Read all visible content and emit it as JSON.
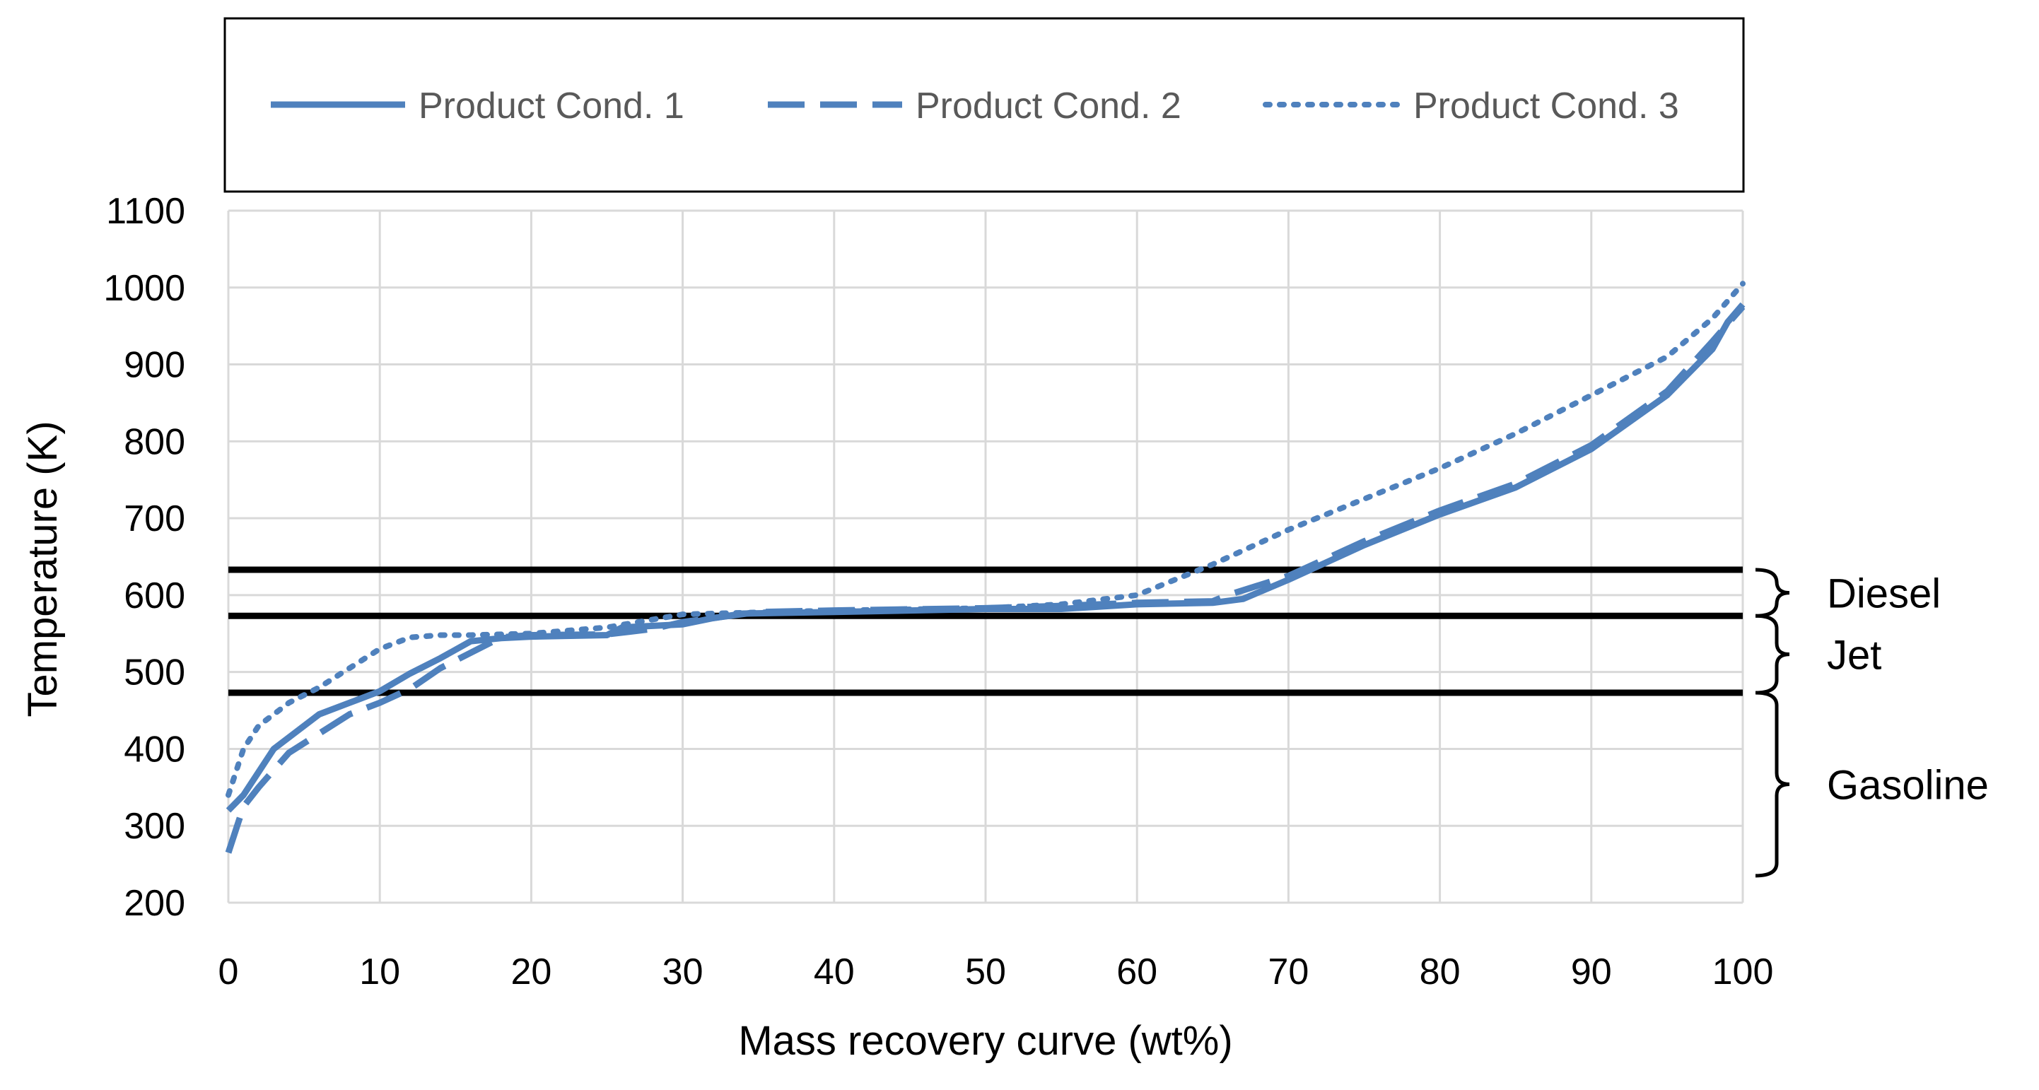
{
  "chart_data": {
    "type": "line",
    "xlabel": "Mass recovery curve (wt%)",
    "ylabel": "Temperature (K)",
    "xlim": [
      0,
      100
    ],
    "ylim": [
      200,
      1100
    ],
    "x_ticks": [
      "0",
      "10",
      "20",
      "30",
      "40",
      "50",
      "60",
      "70",
      "80",
      "90",
      "100"
    ],
    "y_ticks": [
      "200",
      "300",
      "400",
      "500",
      "600",
      "700",
      "800",
      "900",
      "1000",
      "1100"
    ],
    "grid": true,
    "legend_position": "top",
    "series": [
      {
        "name": "Product Cond. 1",
        "style": "solid",
        "color": "#4f81bd",
        "x": [
          0,
          1,
          2,
          3,
          5,
          6,
          8,
          10,
          12,
          14,
          16,
          18,
          20,
          25,
          26,
          30,
          32,
          34,
          40,
          50,
          55,
          60,
          65,
          67,
          70,
          75,
          80,
          85,
          90,
          95,
          98,
          99,
          100
        ],
        "y": [
          320,
          340,
          370,
          400,
          430,
          445,
          460,
          475,
          498,
          518,
          540,
          544,
          546,
          548,
          558,
          562,
          570,
          576,
          578,
          582,
          582,
          588,
          590,
          595,
          620,
          665,
          705,
          740,
          790,
          860,
          920,
          955,
          978
        ]
      },
      {
        "name": "Product Cond. 2",
        "style": "dashed",
        "color": "#4f81bd",
        "x": [
          0,
          1,
          2,
          4,
          6,
          8,
          10,
          12,
          14,
          16,
          18,
          20,
          25,
          28,
          30,
          35,
          40,
          50,
          55,
          60,
          65,
          66,
          70,
          75,
          80,
          85,
          90,
          95,
          98,
          100
        ],
        "y": [
          265,
          325,
          350,
          395,
          420,
          445,
          460,
          478,
          505,
          525,
          545,
          548,
          549,
          556,
          565,
          578,
          580,
          583,
          586,
          590,
          592,
          600,
          625,
          670,
          710,
          745,
          795,
          865,
          930,
          975
        ]
      },
      {
        "name": "Product Cond. 3",
        "style": "dotted",
        "color": "#4f81bd",
        "x": [
          0,
          1,
          2,
          4,
          6,
          8,
          10,
          12,
          14,
          16,
          20,
          25,
          30,
          40,
          50,
          55,
          60,
          65,
          70,
          75,
          80,
          85,
          90,
          95,
          98,
          100
        ],
        "y": [
          340,
          400,
          430,
          460,
          480,
          505,
          530,
          545,
          548,
          548,
          550,
          558,
          575,
          580,
          583,
          588,
          600,
          640,
          685,
          725,
          765,
          810,
          860,
          910,
          960,
          1005
        ]
      }
    ],
    "reference_lines": [
      {
        "y": 633,
        "color": "#000000"
      },
      {
        "y": 573,
        "color": "#000000"
      },
      {
        "y": 473,
        "color": "#000000"
      }
    ],
    "ranges": [
      {
        "label": "Diesel",
        "y_low": 573,
        "y_high": 633
      },
      {
        "label": "Jet",
        "y_low": 473,
        "y_high": 573
      },
      {
        "label": "Gasoline",
        "y_low": 235,
        "y_high": 473
      }
    ],
    "line_color": "#4f81bd",
    "grid_color": "#d9d9d9"
  }
}
